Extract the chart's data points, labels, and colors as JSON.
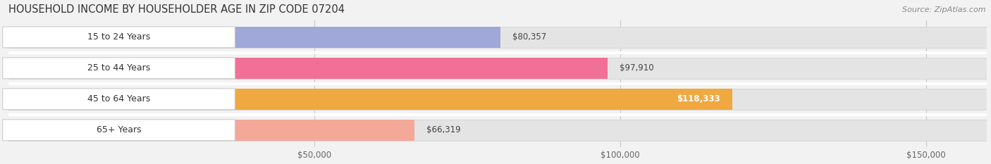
{
  "title": "HOUSEHOLD INCOME BY HOUSEHOLDER AGE IN ZIP CODE 07204",
  "source": "Source: ZipAtlas.com",
  "categories": [
    "15 to 24 Years",
    "25 to 44 Years",
    "45 to 64 Years",
    "65+ Years"
  ],
  "values": [
    80357,
    97910,
    118333,
    66319
  ],
  "bar_colors": [
    "#a0a8d8",
    "#f07098",
    "#f0a840",
    "#f4a898"
  ],
  "label_colors": [
    "#333333",
    "#333333",
    "#ffffff",
    "#333333"
  ],
  "value_labels": [
    "$80,357",
    "$97,910",
    "$118,333",
    "$66,319"
  ],
  "xlim_min": 0,
  "xlim_max": 160000,
  "xticks": [
    50000,
    100000,
    150000
  ],
  "xtick_labels": [
    "$50,000",
    "$100,000",
    "$150,000"
  ],
  "background_color": "#f2f2f2",
  "bar_bg_color": "#e4e4e4",
  "title_fontsize": 10.5,
  "source_fontsize": 8,
  "label_fontsize": 9,
  "value_fontsize": 8.5,
  "tick_fontsize": 8.5,
  "bar_height": 0.68,
  "figsize": [
    14.06,
    2.33
  ],
  "dpi": 100
}
